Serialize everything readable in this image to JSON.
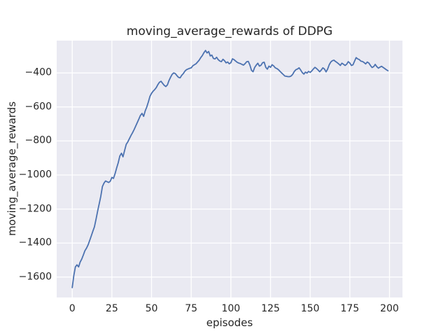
{
  "chart_data": {
    "type": "line",
    "title": "moving_average_rewards of DDPG",
    "xlabel": "episodes",
    "ylabel": "moving_average_rewards",
    "xlim": [
      -9.8,
      208.2
    ],
    "ylim": [
      -1720,
      -210
    ],
    "xticks": [
      0,
      25,
      50,
      75,
      100,
      125,
      150,
      175,
      200
    ],
    "xtick_labels": [
      "0",
      "25",
      "50",
      "75",
      "100",
      "125",
      "150",
      "175",
      "200"
    ],
    "yticks": [
      -1600,
      -1400,
      -1200,
      -1000,
      -800,
      -600,
      -400
    ],
    "ytick_labels": [
      "−1600",
      "−1400",
      "−1200",
      "−1000",
      "−800",
      "−600",
      "−400"
    ],
    "grid": true,
    "legend": false,
    "style": "seaborn-darkgrid",
    "colors": {
      "line": "#4C72B0",
      "plot_bg": "#EAEAF2",
      "grid": "#FFFFFF",
      "text": "#262626",
      "figure_bg": "#FFFFFF"
    },
    "series": [
      {
        "name": "moving_average_rewards",
        "x_start": 0,
        "x_step": 1,
        "y": [
          -1662,
          -1590,
          -1540,
          -1528,
          -1540,
          -1512,
          -1494,
          -1470,
          -1445,
          -1430,
          -1410,
          -1385,
          -1358,
          -1330,
          -1305,
          -1260,
          -1212,
          -1170,
          -1125,
          -1068,
          -1048,
          -1035,
          -1040,
          -1044,
          -1036,
          -1014,
          -1020,
          -992,
          -958,
          -928,
          -888,
          -872,
          -893,
          -856,
          -820,
          -806,
          -787,
          -768,
          -752,
          -733,
          -713,
          -692,
          -671,
          -650,
          -638,
          -655,
          -624,
          -600,
          -570,
          -538,
          -520,
          -507,
          -498,
          -486,
          -468,
          -455,
          -449,
          -462,
          -473,
          -480,
          -470,
          -445,
          -425,
          -408,
          -400,
          -404,
          -416,
          -426,
          -429,
          -414,
          -404,
          -390,
          -381,
          -377,
          -373,
          -370,
          -358,
          -352,
          -346,
          -336,
          -325,
          -310,
          -298,
          -281,
          -268,
          -283,
          -274,
          -300,
          -295,
          -315,
          -318,
          -308,
          -322,
          -330,
          -334,
          -320,
          -328,
          -341,
          -336,
          -346,
          -340,
          -317,
          -322,
          -330,
          -338,
          -342,
          -345,
          -350,
          -354,
          -345,
          -334,
          -332,
          -354,
          -385,
          -393,
          -368,
          -354,
          -343,
          -360,
          -355,
          -340,
          -337,
          -367,
          -378,
          -360,
          -367,
          -352,
          -359,
          -370,
          -374,
          -381,
          -391,
          -400,
          -409,
          -418,
          -420,
          -422,
          -422,
          -418,
          -408,
          -391,
          -381,
          -377,
          -370,
          -383,
          -398,
          -407,
          -395,
          -401,
          -391,
          -397,
          -388,
          -377,
          -367,
          -374,
          -383,
          -393,
          -383,
          -370,
          -377,
          -394,
          -378,
          -352,
          -336,
          -328,
          -325,
          -333,
          -339,
          -347,
          -356,
          -343,
          -349,
          -356,
          -349,
          -334,
          -342,
          -356,
          -352,
          -330,
          -310,
          -318,
          -322,
          -331,
          -333,
          -339,
          -347,
          -336,
          -342,
          -356,
          -368,
          -363,
          -350,
          -363,
          -372,
          -366,
          -361,
          -368,
          -374,
          -381,
          -387
        ]
      }
    ]
  }
}
